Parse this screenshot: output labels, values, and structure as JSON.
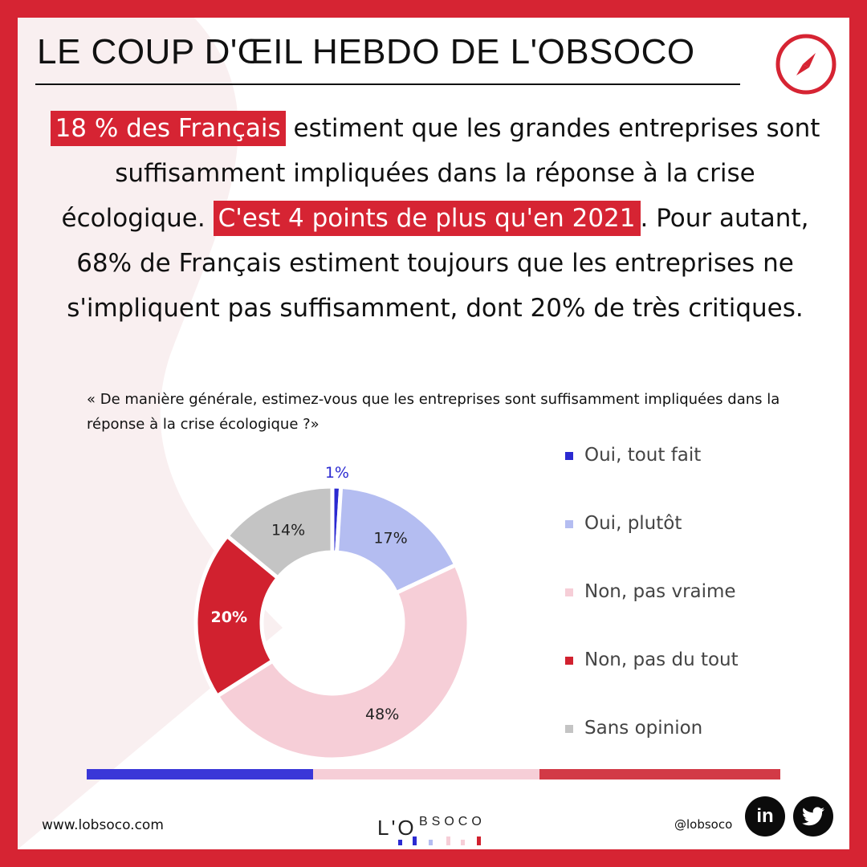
{
  "header": {
    "title": "LE COUP D'ŒIL HEBDO DE L'OBSOCO"
  },
  "headline": {
    "part1_highlight": "18 % des Français",
    "part2": " estiment que les grandes entreprises sont suffisamment impliquées dans la réponse à la crise écologique. ",
    "part3_highlight": "C'est 4 points de plus qu'en 2021",
    "part4": ". Pour autant, 68% de Français estiment toujours que les entreprises ne s'impliquent pas suffisamment, dont 20% de très critiques."
  },
  "question": "« De manière générale, estimez-vous que les entreprises sont suffisamment impliquées dans la réponse à la crise écologique ?»",
  "chart_data": {
    "type": "pie",
    "title": "",
    "categories": [
      "Oui, tout fait",
      "Oui, plutôt",
      "Non, pas vraime",
      "Non, pas du tout",
      "Sans opinion"
    ],
    "values": [
      1,
      17,
      48,
      20,
      14
    ],
    "labels": [
      "1%",
      "17%",
      "48%",
      "20%",
      "14%"
    ],
    "colors": [
      "#2b2ad1",
      "#b4bdf1",
      "#f6ced7",
      "#d1212f",
      "#c4c4c4"
    ],
    "legend_position": "right"
  },
  "bottom_bar_colors": [
    "#3a37d8",
    "#f6ced7",
    "#d23a46"
  ],
  "footer": {
    "url": "www.lobsoco.com",
    "handle": "@lobsoco",
    "logo_text": "L'OBSOCO",
    "linkedin_label": "in"
  },
  "colors": {
    "accent": "#d62433",
    "frame": "#d62433"
  }
}
